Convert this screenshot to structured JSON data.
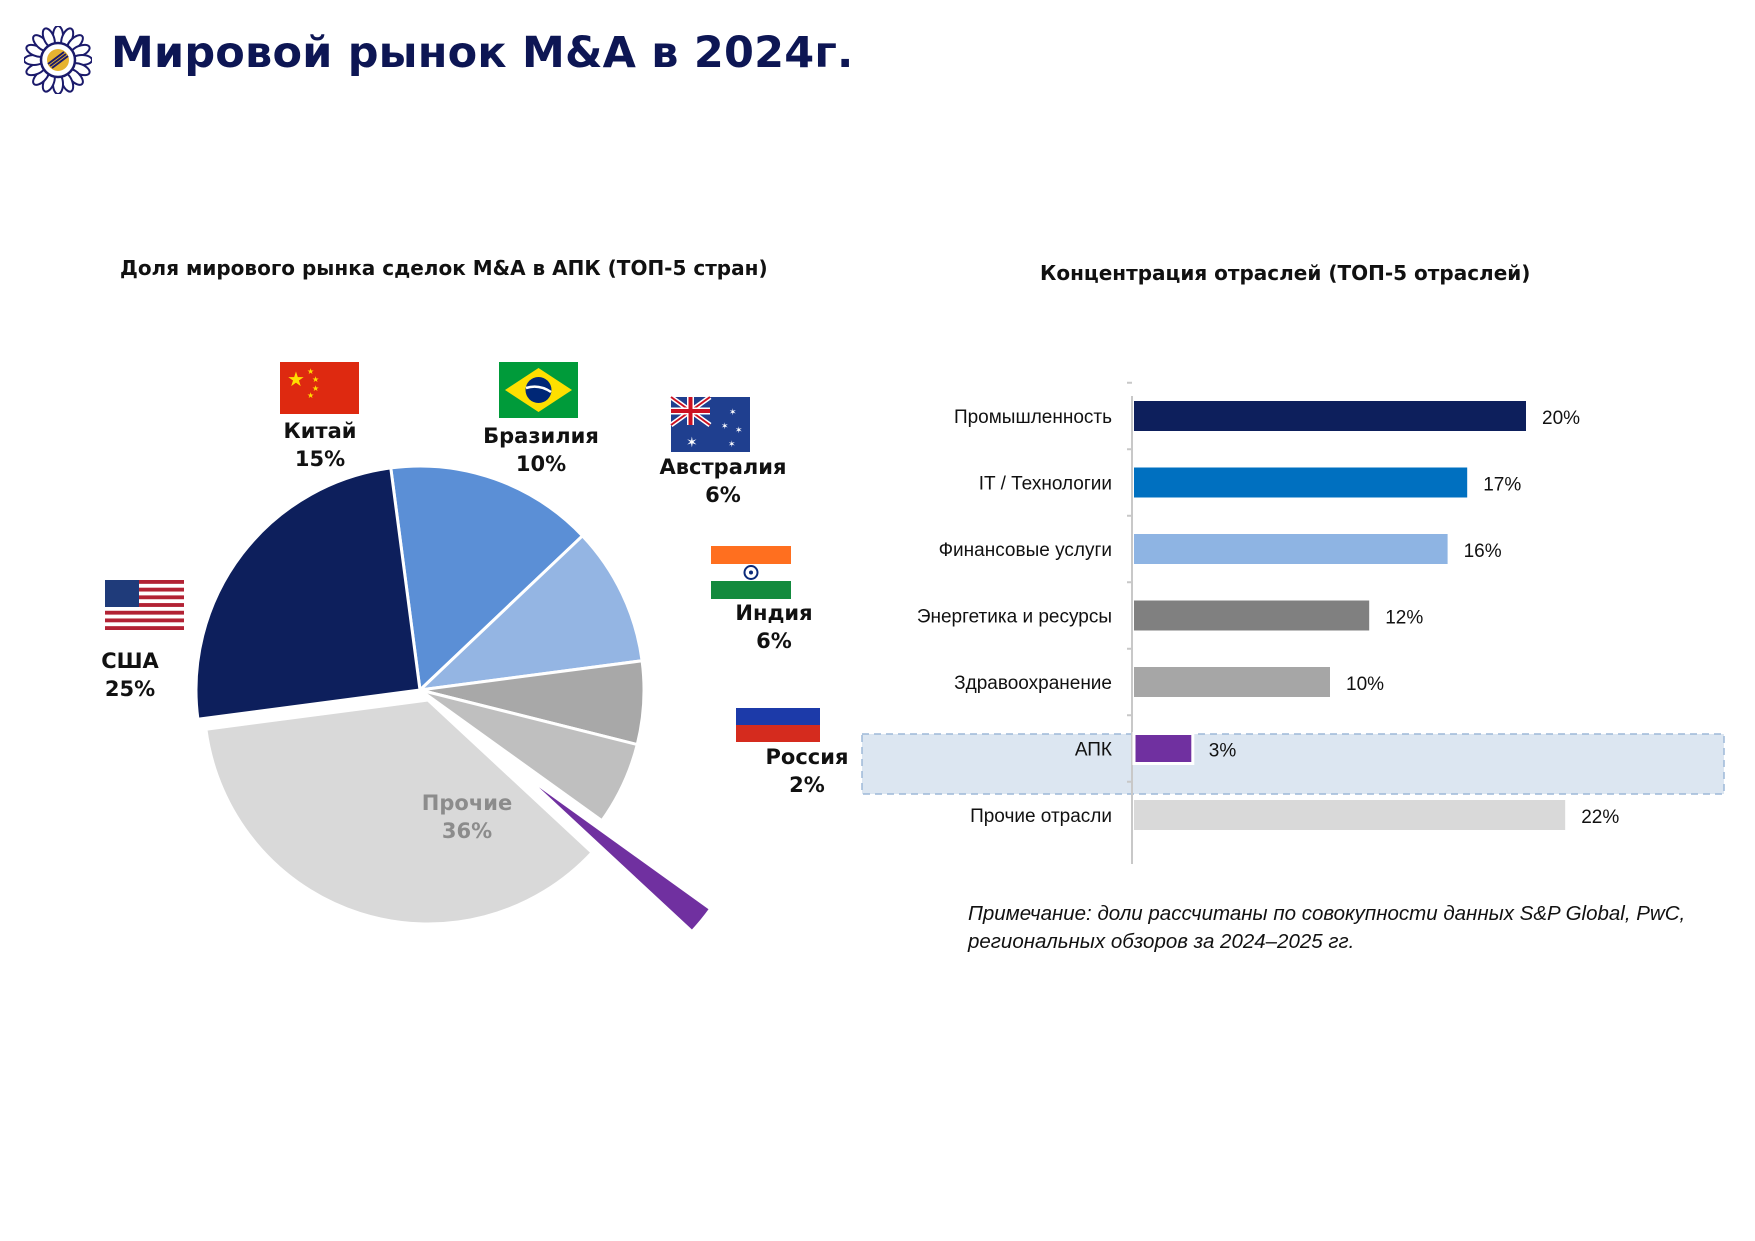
{
  "page_title": "Мировой рынок M&A в 2024г.",
  "pie_title": "Доля мирового рынка сделок M&A в АПК (ТОП-5 стран)",
  "bar_title": "Концентрация отраслей (ТОП-5 отраслей)",
  "note": "Примечание: доли рассчитаны по совокупности данных S&P Global, PwC, региональных обзоров за 2024–2025 гг.",
  "colors": {
    "title": "#0d1654",
    "usa": "#0d1f5c",
    "china": "#5b8fd6",
    "brazil": "#94b5e3",
    "australia": "#a8a8a8",
    "india": "#bfbfbf",
    "russia": "#7030a0",
    "other": "#d9d9d9"
  },
  "chart_data": [
    {
      "type": "pie",
      "title": "Доля мирового рынка сделок M&A в АПК (ТОП-5 стран)",
      "slices": [
        {
          "label": "США",
          "value": 25,
          "value_label": "25%",
          "flag": "us-flag-icon",
          "color": "#0d1f5c"
        },
        {
          "label": "Китай",
          "value": 15,
          "value_label": "15%",
          "flag": "cn-flag-icon",
          "color": "#5b8fd6"
        },
        {
          "label": "Бразилия",
          "value": 10,
          "value_label": "10%",
          "flag": "br-flag-icon",
          "color": "#94b5e3"
        },
        {
          "label": "Австралия",
          "value": 6,
          "value_label": "6%",
          "flag": "au-flag-icon",
          "color": "#a8a8a8"
        },
        {
          "label": "Индия",
          "value": 6,
          "value_label": "6%",
          "flag": "in-flag-icon",
          "color": "#bfbfbf"
        },
        {
          "label": "Россия",
          "value": 2,
          "value_label": "2%",
          "flag": "ru-flag-icon",
          "color": "#7030a0"
        },
        {
          "label": "Прочие",
          "value": 36,
          "value_label": "36%",
          "flag": "",
          "color": "#d9d9d9"
        }
      ]
    },
    {
      "type": "bar",
      "orientation": "horizontal",
      "title": "Концентрация отраслей (ТОП-5 отраслей)",
      "categories": [
        "Промышленность",
        "IT / Технологии",
        "Финансовые услуги",
        "Энергетика и ресурсы",
        "Здравоохранение",
        "АПК",
        "Прочие отрасли"
      ],
      "values": [
        20,
        17,
        16,
        12,
        10,
        3,
        22
      ],
      "value_labels": [
        "20%",
        "17%",
        "16%",
        "12%",
        "10%",
        "3%",
        "22%"
      ],
      "colors": [
        "#0d1f5c",
        "#0070c0",
        "#8eb4e3",
        "#808080",
        "#a6a6a6",
        "#7030a0",
        "#d9d9d9"
      ],
      "highlight": "АПК",
      "xlim": [
        0,
        22
      ],
      "xlabel": "",
      "ylabel": ""
    }
  ]
}
